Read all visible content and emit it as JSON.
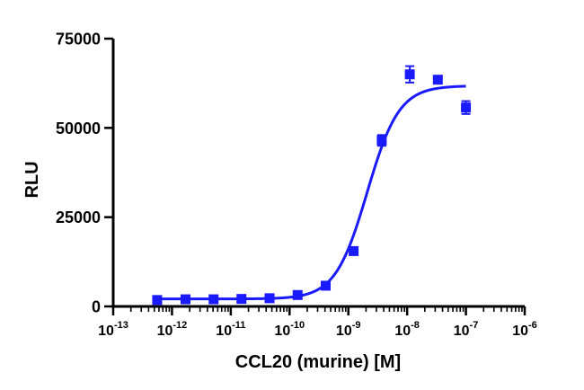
{
  "chart_data": {
    "type": "scatter",
    "xlabel": "CCL20 (murine) [M]",
    "ylabel": "RLU",
    "x_scale": "log",
    "xlim": [
      1e-13,
      1e-06
    ],
    "ylim": [
      0,
      75000
    ],
    "x_ticks": [
      {
        "base": "10",
        "exp": "-13",
        "value": 1e-13
      },
      {
        "base": "10",
        "exp": "-12",
        "value": 1e-12
      },
      {
        "base": "10",
        "exp": "-11",
        "value": 1e-11
      },
      {
        "base": "10",
        "exp": "-10",
        "value": 1e-10
      },
      {
        "base": "10",
        "exp": "-9",
        "value": 1e-09
      },
      {
        "base": "10",
        "exp": "-8",
        "value": 1e-08
      },
      {
        "base": "10",
        "exp": "-7",
        "value": 1e-07
      },
      {
        "base": "10",
        "exp": "-6",
        "value": 1e-06
      }
    ],
    "y_ticks": [
      {
        "label": "0",
        "value": 0
      },
      {
        "label": "25000",
        "value": 25000
      },
      {
        "label": "50000",
        "value": 50000
      },
      {
        "label": "75000",
        "value": 75000
      }
    ],
    "grid": false,
    "color": "#1a1aff",
    "points": [
      {
        "x": 5.6e-13,
        "y": 1800,
        "err": 300
      },
      {
        "x": 1.7e-12,
        "y": 2000,
        "err": 300
      },
      {
        "x": 5.1e-12,
        "y": 2000,
        "err": 300
      },
      {
        "x": 1.52e-11,
        "y": 2100,
        "err": 300
      },
      {
        "x": 4.57e-11,
        "y": 2300,
        "err": 300
      },
      {
        "x": 1.37e-10,
        "y": 3200,
        "err": 400
      },
      {
        "x": 4.12e-10,
        "y": 5800,
        "err": 600
      },
      {
        "x": 1.23e-09,
        "y": 15500,
        "err": 700
      },
      {
        "x": 3.7e-09,
        "y": 46500,
        "err": 1500
      },
      {
        "x": 1.11e-08,
        "y": 65000,
        "err": 2300
      },
      {
        "x": 3.33e-08,
        "y": 63500,
        "err": 1000
      },
      {
        "x": 1e-07,
        "y": 55700,
        "err": 1800
      }
    ],
    "fit": {
      "model": "4PL",
      "bottom": 2100,
      "top": 61800,
      "logEC50": -8.68,
      "hill": 1.6,
      "x_range": [
        5.6e-13,
        1e-07
      ]
    }
  }
}
